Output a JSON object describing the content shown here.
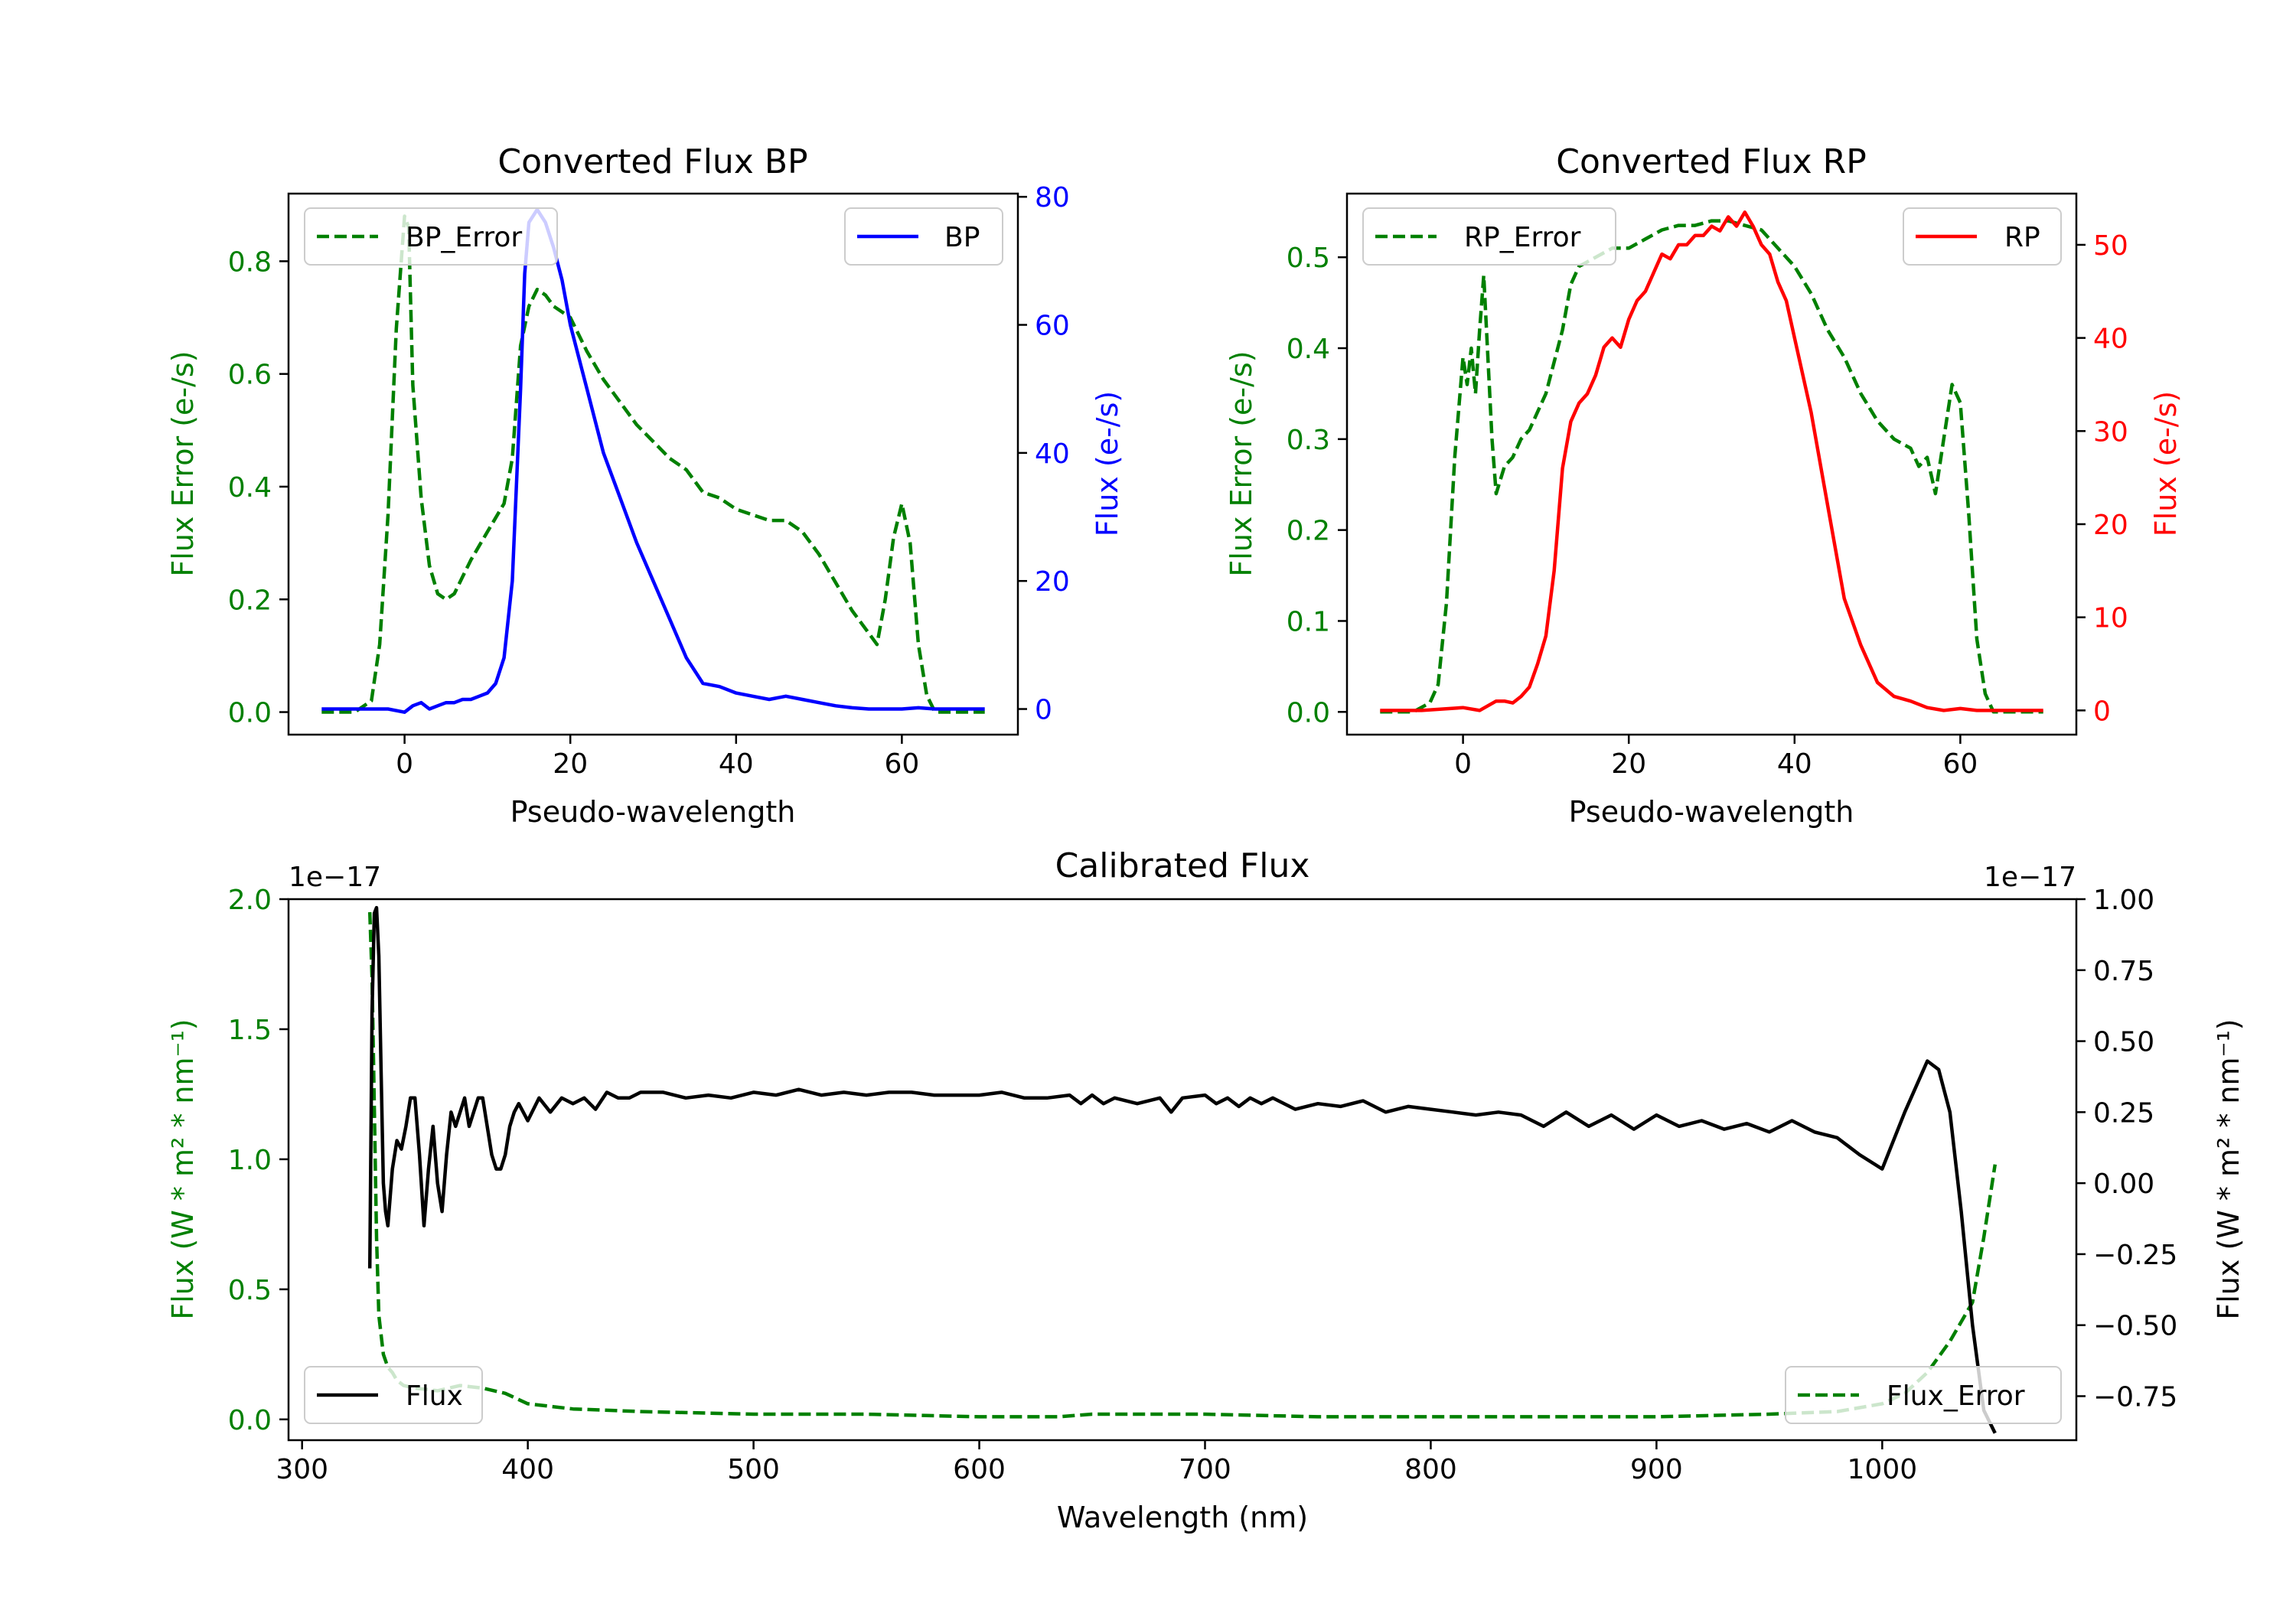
{
  "colors": {
    "bp": "#0000ff",
    "rp": "#ff0000",
    "flux": "#000000",
    "error": "#008000",
    "axis": "#000000"
  },
  "chart_data": [
    {
      "id": "bp",
      "type": "line",
      "title": "Converted Flux BP",
      "xlabel": "Pseudo-wavelength",
      "ylabel_left": "Flux Error (e-/s)",
      "ylabel_right": "Flux (e-/s)",
      "xlim": [
        -14,
        74
      ],
      "ylim_left": [
        -0.04,
        0.92
      ],
      "ylim_right": [
        -4,
        80.5
      ],
      "xticks": [
        0,
        20,
        40,
        60
      ],
      "yticks_left": [
        0.0,
        0.2,
        0.4,
        0.6,
        0.8
      ],
      "yticks_left_labels": [
        "0.0",
        "0.2",
        "0.4",
        "0.6",
        "0.8"
      ],
      "yticks_right": [
        0,
        20,
        40,
        60,
        80
      ],
      "yticks_right_labels": [
        "0",
        "20",
        "40",
        "60",
        "80"
      ],
      "series": [
        {
          "name": "BP_Error",
          "axis": "left",
          "style": "dashed",
          "color_key": "error",
          "x": [
            -10,
            -6,
            -4,
            -3,
            -2,
            -1,
            0,
            0.5,
            1,
            2,
            3,
            4,
            5,
            6,
            7,
            8,
            10,
            12,
            13,
            14,
            15,
            16,
            17,
            18,
            20,
            22,
            24,
            26,
            28,
            30,
            32,
            34,
            36,
            38,
            40,
            42,
            44,
            46,
            48,
            50,
            52,
            54,
            56,
            57,
            58,
            59,
            60,
            61,
            62,
            63,
            64,
            66,
            68,
            70
          ],
          "y": [
            0.0,
            0.0,
            0.02,
            0.12,
            0.35,
            0.68,
            0.88,
            0.86,
            0.58,
            0.38,
            0.26,
            0.21,
            0.2,
            0.21,
            0.24,
            0.27,
            0.32,
            0.37,
            0.45,
            0.65,
            0.72,
            0.75,
            0.74,
            0.72,
            0.7,
            0.64,
            0.59,
            0.55,
            0.51,
            0.48,
            0.45,
            0.43,
            0.39,
            0.38,
            0.36,
            0.35,
            0.34,
            0.34,
            0.32,
            0.28,
            0.23,
            0.18,
            0.14,
            0.12,
            0.2,
            0.31,
            0.37,
            0.3,
            0.12,
            0.03,
            0.0,
            0.0,
            0.0,
            0.0
          ],
          "legend_loc": "upper left"
        },
        {
          "name": "BP",
          "axis": "right",
          "style": "solid",
          "color_key": "bp",
          "x": [
            -10,
            -6,
            -2,
            0,
            1,
            2,
            3,
            4,
            5,
            6,
            7,
            8,
            9,
            10,
            11,
            12,
            13,
            14,
            14.5,
            15,
            16,
            17,
            18,
            19,
            20,
            22,
            24,
            26,
            28,
            30,
            32,
            34,
            36,
            38,
            40,
            42,
            44,
            46,
            48,
            50,
            52,
            54,
            56,
            58,
            60,
            62,
            64,
            66,
            68,
            70
          ],
          "y": [
            0,
            0,
            0,
            -0.5,
            0.5,
            1,
            0,
            0.5,
            1,
            1,
            1.5,
            1.5,
            2,
            2.5,
            4,
            8,
            20,
            50,
            68,
            76,
            78,
            76,
            72,
            67,
            60,
            50,
            40,
            33,
            26,
            20,
            14,
            8,
            4,
            3.5,
            2.5,
            2,
            1.5,
            2,
            1.5,
            1,
            0.5,
            0.2,
            0,
            0,
            0,
            0.2,
            0,
            0,
            0,
            0
          ],
          "legend_loc": "upper right"
        }
      ]
    },
    {
      "id": "rp",
      "type": "line",
      "title": "Converted Flux RP",
      "xlabel": "Pseudo-wavelength",
      "ylabel_left": "Flux Error (e-/s)",
      "ylabel_right": "Flux (e-/s)",
      "xlim": [
        -14,
        74
      ],
      "ylim_left": [
        -0.025,
        0.57
      ],
      "ylim_right": [
        -2.6,
        55.5
      ],
      "xticks": [
        0,
        20,
        40,
        60
      ],
      "yticks_left": [
        0.0,
        0.1,
        0.2,
        0.3,
        0.4,
        0.5
      ],
      "yticks_left_labels": [
        "0.0",
        "0.1",
        "0.2",
        "0.3",
        "0.4",
        "0.5"
      ],
      "yticks_right": [
        0,
        10,
        20,
        30,
        40,
        50
      ],
      "yticks_right_labels": [
        "0",
        "10",
        "20",
        "30",
        "40",
        "50"
      ],
      "series": [
        {
          "name": "RP_Error",
          "axis": "left",
          "style": "dashed",
          "color_key": "error",
          "x": [
            -10,
            -6,
            -4,
            -3,
            -2,
            -1,
            0,
            0.5,
            1,
            1.5,
            2,
            2.5,
            3,
            3.5,
            4,
            5,
            6,
            7,
            8,
            10,
            12,
            13,
            14,
            16,
            18,
            20,
            22,
            24,
            26,
            28,
            30,
            32,
            34,
            36,
            38,
            40,
            42,
            44,
            46,
            48,
            50,
            52,
            54,
            55,
            56,
            57,
            58,
            59,
            60,
            61,
            62,
            63,
            64,
            66,
            68,
            70
          ],
          "y": [
            0.0,
            0.0,
            0.01,
            0.03,
            0.12,
            0.28,
            0.39,
            0.36,
            0.4,
            0.35,
            0.42,
            0.48,
            0.39,
            0.3,
            0.24,
            0.27,
            0.28,
            0.3,
            0.31,
            0.35,
            0.42,
            0.47,
            0.49,
            0.5,
            0.51,
            0.51,
            0.52,
            0.53,
            0.535,
            0.535,
            0.54,
            0.54,
            0.535,
            0.53,
            0.51,
            0.49,
            0.46,
            0.42,
            0.39,
            0.35,
            0.32,
            0.3,
            0.29,
            0.27,
            0.28,
            0.24,
            0.3,
            0.36,
            0.34,
            0.22,
            0.08,
            0.02,
            0.0,
            0.0,
            0.0,
            0.0
          ],
          "legend_loc": "upper left"
        },
        {
          "name": "RP",
          "axis": "right",
          "style": "solid",
          "color_key": "rp",
          "x": [
            -10,
            -5,
            0,
            2,
            4,
            5,
            6,
            7,
            8,
            9,
            10,
            11,
            12,
            13,
            14,
            15,
            16,
            17,
            18,
            19,
            20,
            21,
            22,
            23,
            24,
            25,
            26,
            27,
            28,
            29,
            30,
            31,
            32,
            33,
            34,
            35,
            36,
            37,
            38,
            39,
            40,
            42,
            44,
            46,
            48,
            50,
            52,
            54,
            56,
            58,
            60,
            62,
            64,
            66,
            68,
            70
          ],
          "y": [
            0,
            0,
            0.3,
            0,
            1,
            1,
            0.8,
            1.5,
            2.5,
            5,
            8,
            15,
            26,
            31,
            33,
            34,
            36,
            39,
            40,
            39,
            42,
            44,
            45,
            47,
            49,
            48.5,
            50,
            50,
            51,
            51,
            52,
            51.5,
            53,
            52,
            53.5,
            52,
            50,
            49,
            46,
            44,
            40,
            32,
            22,
            12,
            7,
            3,
            1.5,
            1,
            0.3,
            0,
            0.2,
            0,
            0,
            0,
            0,
            0
          ],
          "legend_loc": "upper right"
        }
      ]
    },
    {
      "id": "cal",
      "type": "line",
      "title": "Calibrated Flux",
      "xlabel": "Wavelength (nm)",
      "ylabel_left": "Flux (W * m² * nm⁻¹)",
      "ylabel_right": "Flux (W * m² * nm⁻¹)",
      "offset_left": "1e−17",
      "offset_right": "1e−17",
      "xlim": [
        294,
        1086
      ],
      "ylim_left": [
        -0.08,
        2.0
      ],
      "ylim_right": [
        -0.905,
        1.0
      ],
      "xticks": [
        300,
        400,
        500,
        600,
        700,
        800,
        900,
        1000
      ],
      "yticks_left": [
        0.0,
        0.5,
        1.0,
        1.5,
        2.0
      ],
      "yticks_left_labels": [
        "0.0",
        "0.5",
        "1.0",
        "1.5",
        "2.0"
      ],
      "yticks_right": [
        -0.75,
        -0.5,
        -0.25,
        0.0,
        0.25,
        0.5,
        0.75,
        1.0
      ],
      "yticks_right_labels": [
        "−0.75",
        "−0.50",
        "−0.25",
        "0.00",
        "0.25",
        "0.50",
        "0.75",
        "1.00"
      ],
      "series": [
        {
          "name": "Flux_Error",
          "axis": "left",
          "style": "dashed",
          "color_key": "error",
          "x": [
            330,
            331,
            332,
            333,
            334,
            336,
            338,
            340,
            342,
            345,
            350,
            360,
            370,
            380,
            390,
            400,
            420,
            450,
            500,
            550,
            600,
            635,
            650,
            700,
            750,
            800,
            850,
            900,
            950,
            980,
            1000,
            1010,
            1020,
            1030,
            1040,
            1045,
            1050
          ],
          "y": [
            1.95,
            1.7,
            1.2,
            0.7,
            0.4,
            0.25,
            0.2,
            0.18,
            0.15,
            0.13,
            0.12,
            0.11,
            0.13,
            0.12,
            0.1,
            0.06,
            0.04,
            0.03,
            0.02,
            0.02,
            0.01,
            0.01,
            0.02,
            0.02,
            0.01,
            0.01,
            0.01,
            0.01,
            0.02,
            0.03,
            0.06,
            0.1,
            0.18,
            0.3,
            0.45,
            0.7,
            0.98
          ],
          "legend_loc": "lower right"
        },
        {
          "name": "Flux",
          "axis": "right",
          "style": "solid",
          "color_key": "flux",
          "x": [
            330,
            331,
            332,
            333,
            334,
            335,
            336,
            337,
            338,
            340,
            342,
            344,
            346,
            348,
            350,
            352,
            354,
            356,
            358,
            360,
            362,
            364,
            366,
            368,
            370,
            372,
            374,
            376,
            378,
            380,
            382,
            384,
            386,
            388,
            390,
            392,
            394,
            396,
            398,
            400,
            405,
            410,
            415,
            420,
            425,
            430,
            435,
            440,
            445,
            450,
            460,
            470,
            480,
            490,
            500,
            510,
            520,
            530,
            540,
            550,
            560,
            570,
            580,
            590,
            600,
            610,
            620,
            630,
            640,
            645,
            650,
            655,
            660,
            670,
            680,
            685,
            690,
            700,
            705,
            710,
            715,
            720,
            725,
            730,
            740,
            750,
            760,
            770,
            780,
            790,
            800,
            810,
            820,
            830,
            840,
            850,
            860,
            870,
            880,
            890,
            900,
            910,
            920,
            930,
            940,
            950,
            960,
            970,
            980,
            990,
            1000,
            1010,
            1020,
            1025,
            1030,
            1035,
            1040,
            1045,
            1050
          ],
          "y": [
            -0.3,
            0.6,
            0.95,
            0.97,
            0.8,
            0.4,
            0.0,
            -0.1,
            -0.15,
            0.05,
            0.15,
            0.12,
            0.2,
            0.3,
            0.3,
            0.1,
            -0.15,
            0.05,
            0.2,
            0.0,
            -0.1,
            0.1,
            0.25,
            0.2,
            0.25,
            0.3,
            0.2,
            0.25,
            0.3,
            0.3,
            0.2,
            0.1,
            0.05,
            0.05,
            0.1,
            0.2,
            0.25,
            0.28,
            0.25,
            0.22,
            0.3,
            0.25,
            0.3,
            0.28,
            0.3,
            0.26,
            0.32,
            0.3,
            0.3,
            0.32,
            0.32,
            0.3,
            0.31,
            0.3,
            0.32,
            0.31,
            0.33,
            0.31,
            0.32,
            0.31,
            0.32,
            0.32,
            0.31,
            0.31,
            0.31,
            0.32,
            0.3,
            0.3,
            0.31,
            0.28,
            0.31,
            0.28,
            0.3,
            0.28,
            0.3,
            0.25,
            0.3,
            0.31,
            0.28,
            0.3,
            0.27,
            0.3,
            0.28,
            0.3,
            0.26,
            0.28,
            0.27,
            0.29,
            0.25,
            0.27,
            0.26,
            0.25,
            0.24,
            0.25,
            0.24,
            0.2,
            0.25,
            0.2,
            0.24,
            0.19,
            0.24,
            0.2,
            0.22,
            0.19,
            0.21,
            0.18,
            0.22,
            0.18,
            0.16,
            0.1,
            0.05,
            0.25,
            0.43,
            0.4,
            0.25,
            -0.1,
            -0.5,
            -0.8,
            -0.88
          ],
          "legend_loc": "lower left"
        }
      ]
    }
  ]
}
